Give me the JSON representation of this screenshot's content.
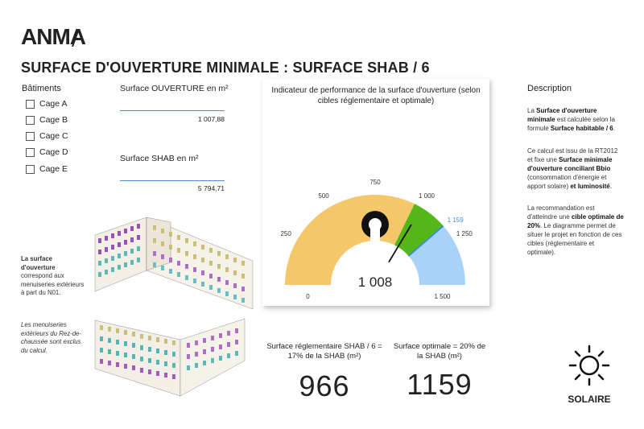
{
  "header": {
    "logo": "ANMA",
    "title": "SURFACE D'OUVERTURE MINIMALE : SURFACE SHAB / 6"
  },
  "slicer": {
    "title": "Bâtiments",
    "items": [
      "Cage A",
      "Cage B",
      "Cage C",
      "Cage D",
      "Cage E"
    ]
  },
  "kpis": {
    "ouverture": {
      "label": "Surface OUVERTURE en m²",
      "value": "1 007,88"
    },
    "shab": {
      "label": "Surface SHAB en m²",
      "value": "5 794,71"
    }
  },
  "notes": {
    "surface_bold": "La surface d'ouverture",
    "surface_rest": "correspond aux menuiseries extérieurs à part du N01.",
    "rdc": "Les menuiseries extérieurs du Rez-de-chaussée sont exclus du calcul."
  },
  "description": {
    "title": "Description",
    "p1_a": "La ",
    "p1_b": "Surface d'ouverture minimale",
    "p1_c": " est calculée selon la formule ",
    "p1_d": "Surface habitable / 6",
    "p1_e": ".",
    "p2_a": "Ce calcul est issu de la RT2012 et fixe une ",
    "p2_b": "Surface minimale d'ouverture conciliant Bbio",
    "p2_c": " (consommation d'énergie et apport solaire) ",
    "p2_d": "et luminosité",
    "p2_e": ".",
    "p3_a": "La recommandation est d'atteindre une ",
    "p3_b": "cible optimale de 20%",
    "p3_c": ". Le diagramme permet de situer le projet en fonction de ces cibles (réglementaire et optimale)."
  },
  "bottom": {
    "reg_label": "Surface réglementaire SHAB / 6 = 17% de la SHAB (m²)",
    "reg_value": "966",
    "opt_label": "Surface optimale = 20% de la SHAB (m²)",
    "opt_value": "1159",
    "badge": "SOLAIRE"
  },
  "chart_data": {
    "type": "gauge",
    "title": "Indicateur de performance de la surface d'ouverture (selon cibles réglementaire et optimale)",
    "min": 0,
    "max": 1500,
    "value": 1008,
    "value_label": "1 008",
    "target": 1159,
    "target_label": "1 159",
    "ticks": [
      {
        "value": 0,
        "label": "0"
      },
      {
        "value": 250,
        "label": "250"
      },
      {
        "value": 500,
        "label": "500"
      },
      {
        "value": 750,
        "label": "750"
      },
      {
        "value": 1000,
        "label": "1 000"
      },
      {
        "value": 1250,
        "label": "1 250"
      },
      {
        "value": 1500,
        "label": "1 500"
      }
    ],
    "bands": [
      {
        "from": 0,
        "to": 966,
        "color": "#f5c76b"
      },
      {
        "from": 966,
        "to": 1159,
        "color": "#55b61a"
      },
      {
        "from": 1159,
        "to": 1500,
        "color": "#a8d3f9"
      }
    ],
    "target_color": "#3e8fd6",
    "needle_color": "#111111"
  }
}
